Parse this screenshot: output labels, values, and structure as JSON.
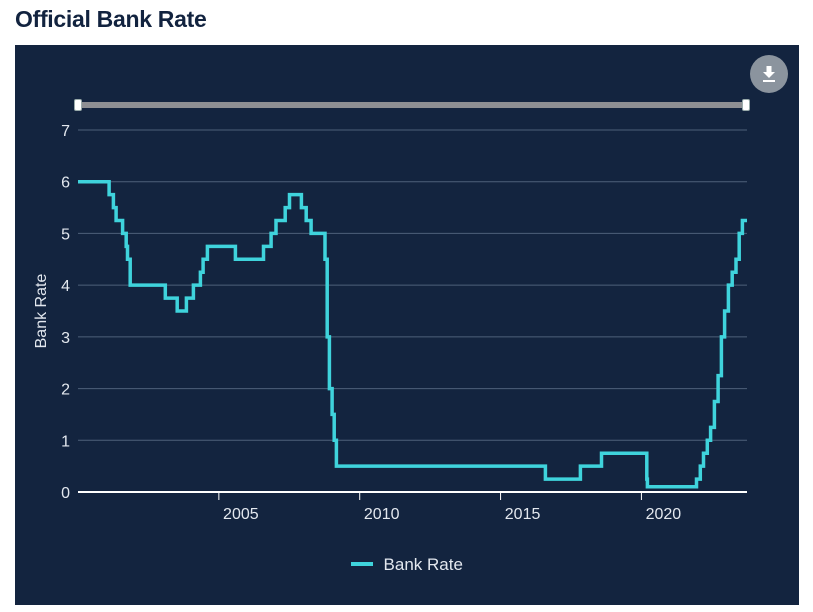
{
  "page": {
    "title": "Official Bank Rate"
  },
  "colors": {
    "panel": "#13243f",
    "line": "#3fd3dc",
    "grid": "#4e607a",
    "axis_text": "#e3e8ef"
  },
  "icons": {
    "download": "download-icon"
  },
  "chart_data": {
    "type": "line",
    "title": "Official Bank Rate",
    "xlabel": "",
    "ylabel": "Bank Rate",
    "xlim": [
      "2000-01-01",
      "2023-10-01"
    ],
    "ylim": [
      0,
      7
    ],
    "x_ticks": [
      "2005",
      "2010",
      "2015",
      "2020"
    ],
    "y_ticks": [
      "0",
      "1",
      "2",
      "3",
      "4",
      "5",
      "6",
      "7"
    ],
    "grid": true,
    "legend": "bottom",
    "series": [
      {
        "name": "Bank Rate",
        "step": true,
        "points": [
          [
            "2000-01-01",
            6.0
          ],
          [
            "2000-12-01",
            6.0
          ],
          [
            "2001-02-08",
            5.75
          ],
          [
            "2001-04-05",
            5.5
          ],
          [
            "2001-05-10",
            5.25
          ],
          [
            "2001-08-02",
            5.0
          ],
          [
            "2001-09-18",
            4.75
          ],
          [
            "2001-10-04",
            4.5
          ],
          [
            "2001-11-08",
            4.0
          ],
          [
            "2003-02-06",
            3.75
          ],
          [
            "2003-07-10",
            3.5
          ],
          [
            "2003-11-06",
            3.75
          ],
          [
            "2004-02-05",
            4.0
          ],
          [
            "2004-05-06",
            4.25
          ],
          [
            "2004-06-10",
            4.5
          ],
          [
            "2004-08-05",
            4.75
          ],
          [
            "2005-08-04",
            4.5
          ],
          [
            "2006-08-03",
            4.75
          ],
          [
            "2006-11-09",
            5.0
          ],
          [
            "2007-01-11",
            5.25
          ],
          [
            "2007-05-10",
            5.5
          ],
          [
            "2007-07-05",
            5.75
          ],
          [
            "2007-12-06",
            5.5
          ],
          [
            "2008-02-07",
            5.25
          ],
          [
            "2008-04-10",
            5.0
          ],
          [
            "2008-10-08",
            4.5
          ],
          [
            "2008-11-06",
            3.0
          ],
          [
            "2008-12-04",
            2.0
          ],
          [
            "2009-01-08",
            1.5
          ],
          [
            "2009-02-05",
            1.0
          ],
          [
            "2009-03-05",
            0.5
          ],
          [
            "2016-08-04",
            0.25
          ],
          [
            "2017-11-02",
            0.5
          ],
          [
            "2018-08-02",
            0.75
          ],
          [
            "2020-03-11",
            0.25
          ],
          [
            "2020-03-19",
            0.1
          ],
          [
            "2021-12-16",
            0.25
          ],
          [
            "2022-02-03",
            0.5
          ],
          [
            "2022-03-17",
            0.75
          ],
          [
            "2022-05-05",
            1.0
          ],
          [
            "2022-06-16",
            1.25
          ],
          [
            "2022-08-04",
            1.75
          ],
          [
            "2022-09-22",
            2.25
          ],
          [
            "2022-11-03",
            3.0
          ],
          [
            "2022-12-15",
            3.5
          ],
          [
            "2023-02-02",
            4.0
          ],
          [
            "2023-03-23",
            4.25
          ],
          [
            "2023-05-11",
            4.5
          ],
          [
            "2023-06-22",
            5.0
          ],
          [
            "2023-08-03",
            5.25
          ],
          [
            "2023-10-01",
            5.25
          ]
        ]
      }
    ]
  }
}
